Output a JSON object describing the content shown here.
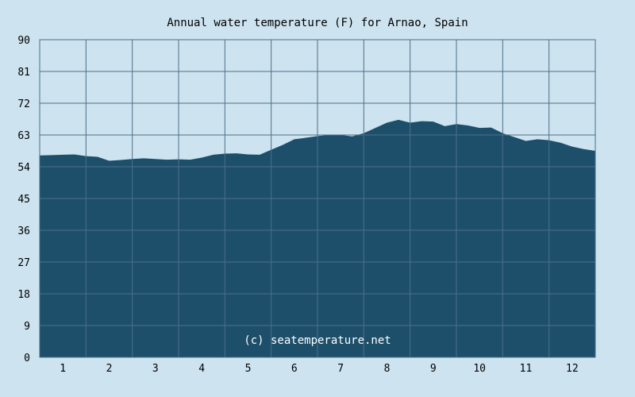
{
  "chart_data": {
    "type": "area",
    "title": "Annual water temperature (F) for Arnao, Spain",
    "xlabel": "",
    "ylabel": "",
    "watermark": "(c) seatemperature.net",
    "x_tick_labels": [
      "1",
      "2",
      "3",
      "4",
      "5",
      "6",
      "7",
      "8",
      "9",
      "10",
      "11",
      "12"
    ],
    "y_tick_labels": [
      "0",
      "9",
      "18",
      "27",
      "36",
      "45",
      "54",
      "63",
      "72",
      "81",
      "90"
    ],
    "ylim": [
      0,
      90
    ],
    "xlim": [
      0,
      12
    ],
    "grid": true,
    "colors": {
      "background": "#cde3ef",
      "area_fill": "#1d4f6b",
      "grid_line": "#4d6f88",
      "plot_border": "#4d6f88"
    },
    "series": [
      {
        "x": [
          0,
          0.25,
          0.5,
          0.75,
          1.0,
          1.25,
          1.5,
          1.75,
          2.0,
          2.25,
          2.5,
          2.75,
          3.0,
          3.25,
          3.5,
          3.75,
          4.0,
          4.25,
          4.5,
          4.75,
          5.0,
          5.25,
          5.5,
          5.75,
          6.0,
          6.25,
          6.5,
          6.75,
          7.0,
          7.25,
          7.5,
          7.75,
          8.0,
          8.25,
          8.5,
          8.75,
          9.0,
          9.25,
          9.5,
          9.75,
          10.0,
          10.25,
          10.5,
          10.75,
          11.0,
          11.25,
          11.5,
          11.75,
          12.0
        ],
        "values": [
          57.2,
          57.3,
          57.4,
          57.5,
          57.0,
          56.8,
          55.7,
          55.9,
          56.2,
          56.4,
          56.2,
          56.0,
          56.1,
          56.0,
          56.6,
          57.4,
          57.7,
          57.8,
          57.5,
          57.4,
          58.8,
          60.2,
          61.8,
          62.2,
          62.7,
          63.0,
          63.0,
          62.6,
          63.5,
          65.0,
          66.5,
          67.3,
          66.5,
          66.9,
          66.8,
          65.5,
          66.1,
          65.7,
          65.0,
          65.1,
          63.5,
          62.4,
          61.3,
          61.8,
          61.5,
          60.8,
          59.7,
          59.0,
          58.5
        ]
      }
    ]
  }
}
